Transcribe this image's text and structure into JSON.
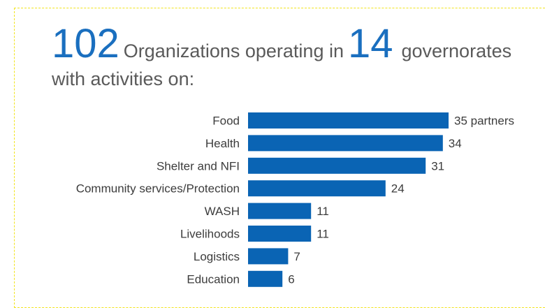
{
  "headline": {
    "org_count": "102",
    "org_text": "Organizations operating in",
    "gov_count": "14",
    "gov_text": "governorates",
    "subline": "with activities on:"
  },
  "chart_data": {
    "type": "bar",
    "orientation": "horizontal",
    "categories": [
      "Food",
      "Health",
      "Shelter and NFI",
      "Community services/Protection",
      "WASH",
      "Livelihoods",
      "Logistics",
      "Education"
    ],
    "values": [
      35,
      34,
      31,
      24,
      11,
      11,
      7,
      6
    ],
    "value_labels": [
      "35 partners",
      "34",
      "31",
      "24",
      "11",
      "11",
      "7",
      "6"
    ],
    "bar_color": "#0a64b4",
    "grid": false
  }
}
